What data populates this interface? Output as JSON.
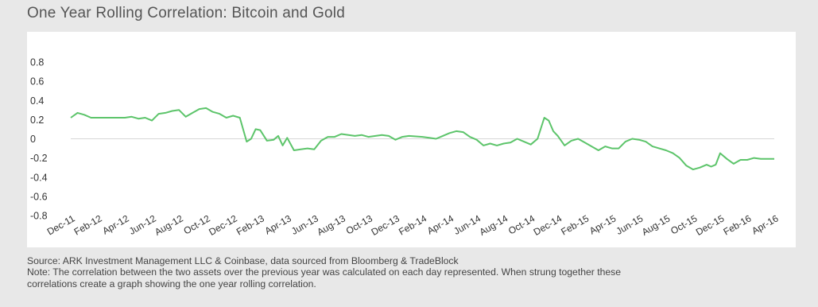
{
  "title": "One Year Rolling Correlation: Bitcoin and Gold",
  "source_text": "Source: ARK Investment Management LLC & Coinbase, data sourced from Bloomberg & TradeBlock",
  "note_line1": "Note: The correlation between the two assets over the previous year was calculated on each day represented. When strung together these",
  "note_line2": "correlations create a graph showing the one year rolling correlation.",
  "colors": {
    "line": "#5cc46a",
    "zero_line": "#d6d6d6",
    "background": "#e8e8e8",
    "panel": "#ffffff"
  },
  "chart_data": {
    "type": "line",
    "title": "One Year Rolling Correlation: Bitcoin and Gold",
    "xlabel": "",
    "ylabel": "",
    "ylim": [
      -0.8,
      0.8
    ],
    "grid": false,
    "legend": "none",
    "y_ticks": [
      "0.8",
      "0.6",
      "0.4",
      "0.2",
      "0",
      "-0.2",
      "-0.4",
      "-0.6",
      "-0.8"
    ],
    "x_tick_labels": [
      "Dec-11",
      "Feb-12",
      "Apr-12",
      "Jun-12",
      "Aug-12",
      "Oct-12",
      "Dec-12",
      "Feb-13",
      "Apr-13",
      "Jun-13",
      "Aug-13",
      "Oct-13",
      "Dec-13",
      "Feb-14",
      "Apr-14",
      "Jun-14",
      "Aug-14",
      "Oct-14",
      "Dec-14",
      "Feb-15",
      "Apr-15",
      "Jun-15",
      "Aug-15",
      "Oct-15",
      "Dec-15",
      "Feb-16",
      "Apr-16"
    ],
    "series": [
      {
        "values": [
          [
            "Dec-11",
            0.22
          ],
          [
            "Dec-11",
            0.27
          ],
          [
            "Jan-12",
            0.25
          ],
          [
            "Jan-12",
            0.22
          ],
          [
            "Feb-12",
            0.22
          ],
          [
            "Mar-12",
            0.22
          ],
          [
            "Apr-12",
            0.22
          ],
          [
            "Apr-12",
            0.23
          ],
          [
            "May-12",
            0.21
          ],
          [
            "May-12",
            0.22
          ],
          [
            "Jun-12",
            0.19
          ],
          [
            "Jun-12",
            0.26
          ],
          [
            "Jul-12",
            0.27
          ],
          [
            "Jul-12",
            0.29
          ],
          [
            "Aug-12",
            0.3
          ],
          [
            "Aug-12",
            0.23
          ],
          [
            "Sep-12",
            0.27
          ],
          [
            "Sep-12",
            0.31
          ],
          [
            "Oct-12",
            0.32
          ],
          [
            "Oct-12",
            0.28
          ],
          [
            "Nov-12",
            0.26
          ],
          [
            "Nov-12",
            0.22
          ],
          [
            "Dec-12",
            0.24
          ],
          [
            "Dec-12",
            0.22
          ],
          [
            "Jan-13",
            -0.03
          ],
          [
            "Jan-13",
            0.0
          ],
          [
            "Jan-13",
            0.1
          ],
          [
            "Feb-13",
            0.09
          ],
          [
            "Feb-13",
            -0.02
          ],
          [
            "Mar-13",
            -0.01
          ],
          [
            "Mar-13",
            0.03
          ],
          [
            "Mar-13",
            -0.07
          ],
          [
            "Apr-13",
            0.01
          ],
          [
            "Apr-13",
            -0.12
          ],
          [
            "May-13",
            -0.11
          ],
          [
            "May-13",
            -0.1
          ],
          [
            "Jun-13",
            -0.11
          ],
          [
            "Jun-13",
            -0.02
          ],
          [
            "Jul-13",
            0.02
          ],
          [
            "Jul-13",
            0.02
          ],
          [
            "Aug-13",
            0.05
          ],
          [
            "Sep-13",
            0.03
          ],
          [
            "Sep-13",
            0.04
          ],
          [
            "Oct-13",
            0.02
          ],
          [
            "Nov-13",
            0.04
          ],
          [
            "Nov-13",
            0.03
          ],
          [
            "Dec-13",
            -0.01
          ],
          [
            "Dec-13",
            0.02
          ],
          [
            "Jan-14",
            0.03
          ],
          [
            "Feb-14",
            0.02
          ],
          [
            "Feb-14",
            0.01
          ],
          [
            "Mar-14",
            0.0
          ],
          [
            "Mar-14",
            0.03
          ],
          [
            "Apr-14",
            0.06
          ],
          [
            "Apr-14",
            0.08
          ],
          [
            "May-14",
            0.07
          ],
          [
            "May-14",
            0.02
          ],
          [
            "Jun-14",
            -0.01
          ],
          [
            "Jun-14",
            -0.07
          ],
          [
            "Jul-14",
            -0.05
          ],
          [
            "Jul-14",
            -0.07
          ],
          [
            "Aug-14",
            -0.05
          ],
          [
            "Aug-14",
            -0.04
          ],
          [
            "Sep-14",
            0.0
          ],
          [
            "Sep-14",
            -0.03
          ],
          [
            "Oct-14",
            -0.06
          ],
          [
            "Oct-14",
            0.0
          ],
          [
            "Nov-14",
            0.22
          ],
          [
            "Nov-14",
            0.19
          ],
          [
            "Nov-14",
            0.08
          ],
          [
            "Dec-14",
            0.03
          ],
          [
            "Dec-14",
            -0.07
          ],
          [
            "Jan-15",
            -0.02
          ],
          [
            "Jan-15",
            0.0
          ],
          [
            "Feb-15",
            -0.04
          ],
          [
            "Mar-15",
            -0.12
          ],
          [
            "Mar-15",
            -0.08
          ],
          [
            "Apr-15",
            -0.1
          ],
          [
            "Apr-15",
            -0.1
          ],
          [
            "May-15",
            -0.03
          ],
          [
            "May-15",
            0.0
          ],
          [
            "Jun-15",
            -0.01
          ],
          [
            "Jun-15",
            -0.03
          ],
          [
            "Jul-15",
            -0.08
          ],
          [
            "Jul-15",
            -0.1
          ],
          [
            "Aug-15",
            -0.12
          ],
          [
            "Aug-15",
            -0.15
          ],
          [
            "Sep-15",
            -0.2
          ],
          [
            "Sep-15",
            -0.28
          ],
          [
            "Oct-15",
            -0.32
          ],
          [
            "Oct-15",
            -0.3
          ],
          [
            "Nov-15",
            -0.27
          ],
          [
            "Nov-15",
            -0.29
          ],
          [
            "Nov-15",
            -0.27
          ],
          [
            "Dec-15",
            -0.15
          ],
          [
            "Dec-15",
            -0.21
          ],
          [
            "Jan-16",
            -0.26
          ],
          [
            "Jan-16",
            -0.22
          ],
          [
            "Feb-16",
            -0.22
          ],
          [
            "Feb-16",
            -0.2
          ],
          [
            "Mar-16",
            -0.21
          ],
          [
            "Apr-16",
            -0.21
          ]
        ]
      }
    ]
  }
}
